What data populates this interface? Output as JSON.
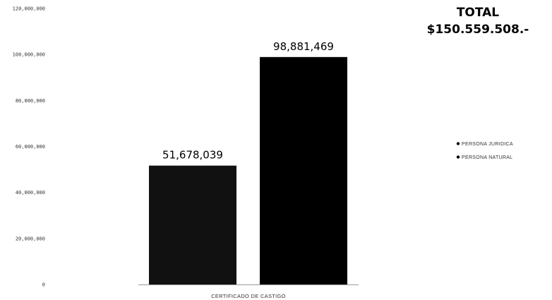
{
  "total": {
    "title": "TOTAL",
    "value": "$150.559.508.-"
  },
  "chart_data": {
    "type": "bar",
    "categories": [
      "CERTIFICADO DE CASTIGO"
    ],
    "series": [
      {
        "name": "PERSONA JURIDICA",
        "values": [
          51678039
        ],
        "label": "51,678,039",
        "color": "#111111"
      },
      {
        "name": "PERSONA NATURAL",
        "values": [
          98881469
        ],
        "label": "98,881,469",
        "color": "#000000"
      }
    ],
    "ylim": [
      0,
      120000000
    ],
    "yticks": [
      0,
      20000000,
      40000000,
      60000000,
      80000000,
      100000000,
      120000000
    ],
    "ytick_labels": [
      "0",
      "20,000,000",
      "40,000,000",
      "60,000,000",
      "80,000,000",
      "100,000,000",
      "120,000,000"
    ],
    "legend_position": "right",
    "grid": false
  }
}
